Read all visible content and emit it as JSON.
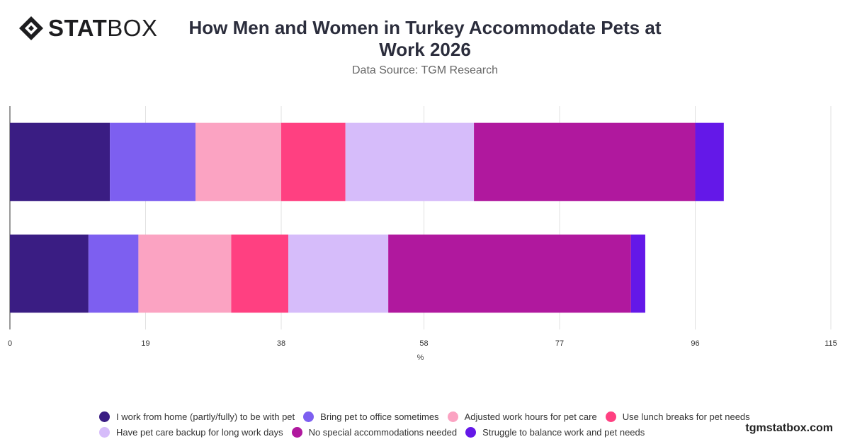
{
  "brand": {
    "logo_bold": "STAT",
    "logo_light": "BOX",
    "watermark": "tgmstatbox.com"
  },
  "header": {
    "title": "How Men and Women in Turkey Accommodate Pets at Work 2026",
    "subtitle": "Data Source: TGM Research"
  },
  "chart_data": {
    "type": "bar",
    "orientation": "horizontal",
    "stacked": true,
    "categories": [
      "",
      ""
    ],
    "xlabel": "%",
    "xlim": [
      0,
      115
    ],
    "xticks": [
      0,
      19,
      38,
      58,
      77,
      96,
      115
    ],
    "grid": true,
    "legend_position": "bottom",
    "series": [
      {
        "name": "I work from home (partly/fully) to be with pet",
        "color": "#3a1d83",
        "values": [
          14,
          11
        ]
      },
      {
        "name": "Bring pet to office sometimes",
        "color": "#7d5ff0",
        "values": [
          12,
          7
        ]
      },
      {
        "name": "Adjusted work hours for pet care",
        "color": "#fba3c2",
        "values": [
          12,
          13
        ]
      },
      {
        "name": "Use lunch breaks for pet needs",
        "color": "#ff4081",
        "values": [
          9,
          8
        ]
      },
      {
        "name": "Have pet care backup for long work days",
        "color": "#d6bcfa",
        "values": [
          18,
          14
        ]
      },
      {
        "name": "No special accommodations needed",
        "color": "#b0189e",
        "values": [
          31,
          34
        ]
      },
      {
        "name": "Struggle to balance work and pet needs",
        "color": "#6418e8",
        "values": [
          4,
          2
        ]
      }
    ]
  }
}
